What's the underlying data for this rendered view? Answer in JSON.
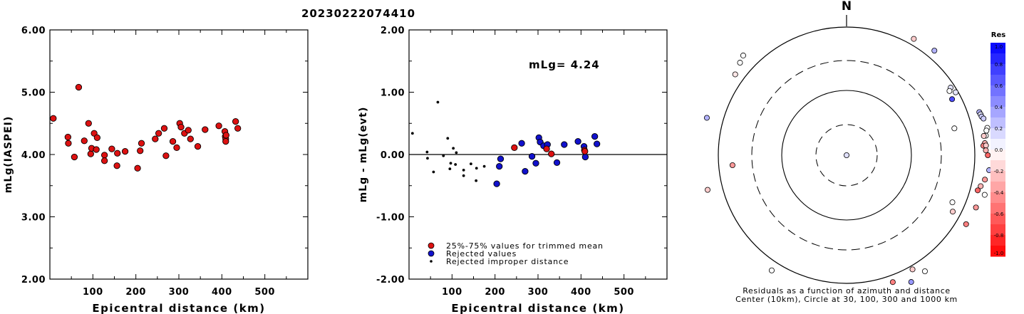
{
  "title": "20230222074410",
  "colors": {
    "trimmed": "#dd1111",
    "rejected": "#1111cc",
    "improper": "#000000",
    "axis": "#000000"
  },
  "chart_data": [
    {
      "id": "magnitude-vs-distance",
      "type": "scatter",
      "xlabel": "Epicentral distance (km)",
      "ylabel": "mLg(IASPEI)",
      "xlim": [
        0,
        600
      ],
      "ylim": [
        2.0,
        6.0
      ],
      "xticks": [
        "100",
        "200",
        "300",
        "400",
        "500"
      ],
      "yticks": [
        "2.00",
        "3.00",
        "4.00",
        "5.00",
        "6.00"
      ],
      "grid": false,
      "x": [
        8,
        42,
        43,
        57,
        67,
        80,
        90,
        95,
        97,
        103,
        108,
        110,
        127,
        127,
        144,
        156,
        157,
        175,
        204,
        210,
        213,
        245,
        253,
        266,
        270,
        286,
        295,
        302,
        305,
        313,
        322,
        327,
        344,
        361,
        393,
        407,
        408,
        409,
        409,
        410,
        432,
        437
      ],
      "y": [
        4.58,
        4.28,
        4.18,
        3.96,
        5.08,
        4.22,
        4.5,
        4.01,
        4.1,
        4.34,
        4.08,
        4.27,
        3.99,
        3.9,
        4.09,
        3.82,
        4.02,
        4.05,
        3.78,
        4.06,
        4.18,
        4.25,
        4.34,
        4.42,
        3.98,
        4.21,
        4.11,
        4.5,
        4.44,
        4.34,
        4.39,
        4.25,
        4.13,
        4.4,
        4.46,
        4.37,
        4.29,
        4.25,
        4.21,
        4.31,
        4.53,
        4.42
      ]
    },
    {
      "id": "residual-vs-distance",
      "type": "scatter",
      "xlabel": "Epicentral distance (km)",
      "ylabel": "mLg - mLg(evt)",
      "xlim": [
        0,
        600
      ],
      "ylim": [
        -2.0,
        2.0
      ],
      "xticks": [
        "100",
        "200",
        "300",
        "400",
        "500"
      ],
      "yticks": [
        "-2.00",
        "-1.00",
        "0.00",
        "1.00",
        "2.00"
      ],
      "reference_line": 0.0,
      "annotation": "mLg= 4.24",
      "series": [
        {
          "name": "25%-75% values for trimmed mean",
          "marker": "circle",
          "x": [
            245,
            320,
            331,
            408,
            409
          ],
          "y": [
            0.11,
            0.09,
            0.01,
            0.07,
            0.05
          ]
        },
        {
          "name": "Rejected values",
          "marker": "circle",
          "x": [
            204,
            210,
            213,
            262,
            270,
            286,
            295,
            302,
            305,
            313,
            322,
            344,
            361,
            393,
            407,
            410,
            432,
            437
          ],
          "y": [
            -0.47,
            -0.19,
            -0.07,
            0.18,
            -0.27,
            -0.03,
            -0.14,
            0.27,
            0.2,
            0.14,
            0.16,
            -0.13,
            0.16,
            0.21,
            0.13,
            -0.04,
            0.29,
            0.17
          ]
        },
        {
          "name": "Rejected improper distance",
          "marker": "dot",
          "x": [
            8,
            42,
            43,
            57,
            67,
            80,
            90,
            95,
            97,
            103,
            108,
            110,
            127,
            127,
            144,
            156,
            157,
            175
          ],
          "y": [
            0.34,
            0.04,
            -0.06,
            -0.28,
            0.84,
            -0.02,
            0.26,
            -0.23,
            -0.14,
            0.1,
            -0.16,
            0.03,
            -0.25,
            -0.34,
            -0.15,
            -0.42,
            -0.22,
            -0.19
          ]
        }
      ]
    },
    {
      "id": "azimuth-residual",
      "type": "scatter",
      "north_label": "N",
      "caption_line1": "Residuals as a function of azimuth and distance",
      "caption_line2": "Center (10km), Circle at 30, 100, 300 and 1000 km",
      "rings_km": [
        30,
        100,
        300,
        1000
      ],
      "colorbar_title": "Res",
      "colorbar_ticks": [
        "1.0",
        "0.8",
        "0.6",
        "0.4",
        "0.2",
        "0.0",
        "-0.2",
        "-0.4",
        "-0.6",
        "-0.8",
        "-1.0"
      ],
      "points": [
        {
          "az": 227,
          "dist": 1,
          "res": 0.12
        },
        {
          "az": 311,
          "dist": 1590,
          "res": 0.0
        },
        {
          "az": 314,
          "dist": 1740,
          "res": 0.0
        },
        {
          "az": 306,
          "dist": 1400,
          "res": -0.1
        },
        {
          "az": 30,
          "dist": 1250,
          "res": -0.2
        },
        {
          "az": 40,
          "dist": 1350,
          "res": 0.3
        },
        {
          "az": 285,
          "dist": 1800,
          "res": 0.3
        },
        {
          "az": 265,
          "dist": 610,
          "res": -0.4
        },
        {
          "az": 57,
          "dist": 860,
          "res": 0.1
        },
        {
          "az": 58,
          "dist": 780,
          "res": 0.0
        },
        {
          "az": 62,
          "dist": 730,
          "res": 0.7
        },
        {
          "az": 60,
          "dist": 920,
          "res": 0.1
        },
        {
          "az": 76,
          "dist": 540,
          "res": 0.0
        },
        {
          "az": 82,
          "dist": 1560,
          "res": 0.0
        },
        {
          "az": 72,
          "dist": 1500,
          "res": 0.3
        },
        {
          "az": 73,
          "dist": 1530,
          "res": 0.1
        },
        {
          "az": 74,
          "dist": 1550,
          "res": 0.2
        },
        {
          "az": 75,
          "dist": 1625,
          "res": 0.2
        },
        {
          "az": 79,
          "dist": 1720,
          "res": 0.0
        },
        {
          "az": 80,
          "dist": 1640,
          "res": 0.0
        },
        {
          "az": 82,
          "dist": 1450,
          "res": -0.2
        },
        {
          "az": 85,
          "dist": 1460,
          "res": -0.3
        },
        {
          "az": 86,
          "dist": 1375,
          "res": -0.5
        },
        {
          "az": 86,
          "dist": 1510,
          "res": -0.2
        },
        {
          "az": 88,
          "dist": 1490,
          "res": -0.3
        },
        {
          "az": 90,
          "dist": 1595,
          "res": -0.6
        },
        {
          "az": 96,
          "dist": 1720,
          "res": 0.3
        },
        {
          "az": 103,
          "dist": 1400,
          "res": -0.3
        },
        {
          "az": 105,
          "dist": 1310,
          "res": -0.6
        },
        {
          "az": 100,
          "dist": 1550,
          "res": -0.4
        },
        {
          "az": 106,
          "dist": 1740,
          "res": 0.0
        },
        {
          "az": 112,
          "dist": 1500,
          "res": -0.4
        },
        {
          "az": 114,
          "dist": 640,
          "res": 0.0
        },
        {
          "az": 118,
          "dist": 750,
          "res": -0.2
        },
        {
          "az": 120,
          "dist": 1420,
          "res": -0.5
        },
        {
          "az": 146,
          "dist": 1530,
          "res": 0.0
        },
        {
          "az": 150,
          "dist": 1140,
          "res": -0.2
        },
        {
          "az": 160,
          "dist": 1280,
          "res": -0.5
        },
        {
          "az": 153,
          "dist": 1660,
          "res": 0.4
        },
        {
          "az": 213,
          "dist": 1390,
          "res": 0.0
        },
        {
          "az": 256,
          "dist": 1710,
          "res": -0.2
        }
      ]
    }
  ]
}
